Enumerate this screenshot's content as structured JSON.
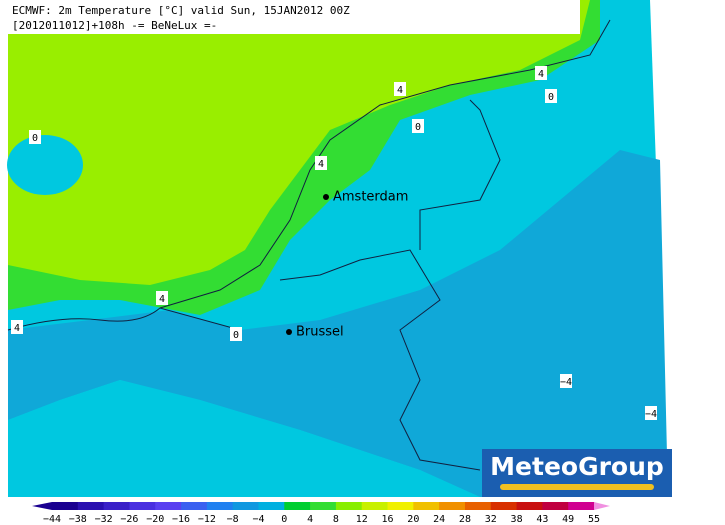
{
  "header": {
    "lines": [
      "ECMWF: 2m Temperature [°C] valid Sun, 15JAN2012 00Z",
      "[2012011012]+108h  -= BeNeLux =-"
    ]
  },
  "contour_labels": [
    "0",
    "4",
    "4",
    "0",
    "0",
    "4",
    "4",
    "4",
    "0",
    "−4",
    "−4"
  ],
  "cities": [
    "Amsterdam",
    "Brussel"
  ],
  "logo": "MeteoGroup",
  "colorbar": {
    "labels": [
      "−44",
      "−38",
      "−32",
      "−26",
      "−20",
      "−16",
      "−12",
      "−8",
      "−4",
      "0",
      "4",
      "8",
      "12",
      "16",
      "20",
      "24",
      "28",
      "32",
      "38",
      "43",
      "49",
      "55"
    ],
    "colors": [
      "#1a0090",
      "#2a10b0",
      "#3a20c8",
      "#4a30e0",
      "#5a40f0",
      "#3a60f0",
      "#2080f0",
      "#1098e0",
      "#00b0e0",
      "#00ce30",
      "#33dd33",
      "#88ee00",
      "#c8f000",
      "#f0f000",
      "#f0c000",
      "#f09000",
      "#e86000",
      "#d83000",
      "#c81010",
      "#c00040",
      "#d00090"
    ]
  }
}
